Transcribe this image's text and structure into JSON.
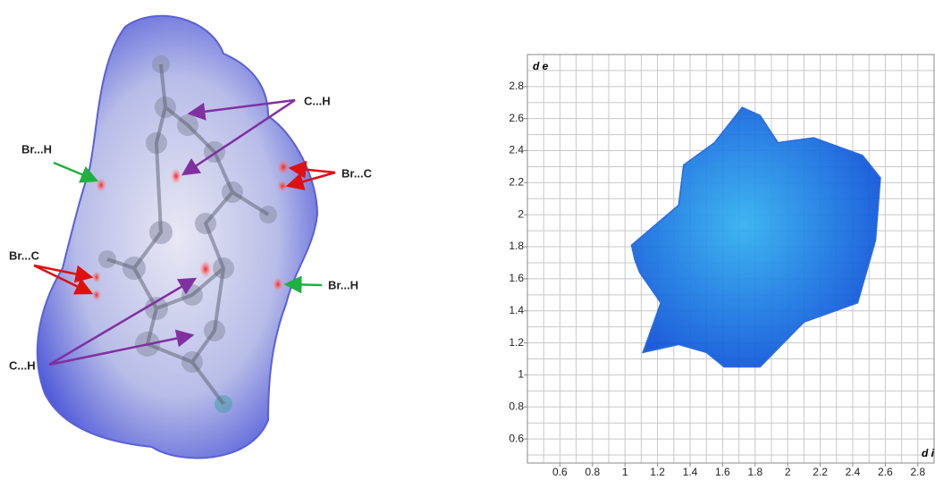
{
  "surface": {
    "labels": [
      "C...H",
      "Br...H",
      "Br...C",
      "Br...C",
      "Br...H",
      "C...H"
    ]
  },
  "chart_data": {
    "type": "fingerprint",
    "xlabel": "d i",
    "ylabel": "d e",
    "color": "#1a5fe0",
    "x": [
      1.04,
      1.33,
      1.36,
      1.55,
      1.72,
      1.83,
      1.94,
      2.16,
      2.46,
      2.57,
      2.54,
      2.43,
      2.1,
      1.83,
      1.61,
      1.5,
      1.33,
      1.11,
      1.22,
      1.09,
      1.06
    ],
    "values": [
      1.81,
      2.06,
      2.31,
      2.45,
      2.67,
      2.62,
      2.45,
      2.48,
      2.37,
      2.23,
      1.84,
      1.45,
      1.33,
      1.05,
      1.05,
      1.14,
      1.19,
      1.14,
      1.45,
      1.64,
      1.72
    ],
    "xlim": [
      0.4,
      2.9
    ],
    "ylim": [
      0.45,
      3.0
    ],
    "xticks": [
      0.6,
      0.8,
      1.0,
      1.2,
      1.4,
      1.6,
      1.8,
      2.0,
      2.2,
      2.4,
      2.6,
      2.8
    ],
    "yticks": [
      0.6,
      0.8,
      1.0,
      1.2,
      1.4,
      1.6,
      1.8,
      2.0,
      2.2,
      2.4,
      2.6,
      2.8
    ],
    "xgrid": [
      0.5,
      0.6,
      0.7,
      0.8,
      0.9,
      1.0,
      1.1,
      1.2,
      1.3,
      1.4,
      1.5,
      1.6,
      1.7,
      1.8,
      1.9,
      2.0,
      2.1,
      2.2,
      2.3,
      2.4,
      2.5,
      2.6,
      2.7,
      2.8
    ],
    "ygrid": [
      0.5,
      0.6,
      0.7,
      0.8,
      0.9,
      1.0,
      1.1,
      1.2,
      1.3,
      1.4,
      1.5,
      1.6,
      1.7,
      1.8,
      1.9,
      2.0,
      2.1,
      2.2,
      2.3,
      2.4,
      2.5,
      2.6,
      2.7,
      2.8,
      2.9
    ],
    "grid": true
  }
}
